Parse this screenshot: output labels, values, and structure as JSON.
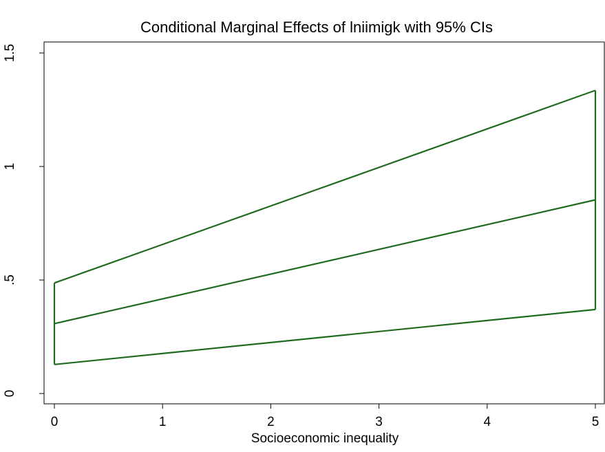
{
  "chart_data": {
    "type": "line",
    "title": "Conditional Marginal Effects of lniimigk with 95% CIs",
    "xlabel": "Socioeconomic inequality",
    "ylabel": "",
    "xlim": [
      0,
      5
    ],
    "ylim": [
      0,
      1.5
    ],
    "x_ticks": [
      {
        "value": 0,
        "label": "0"
      },
      {
        "value": 1,
        "label": "1"
      },
      {
        "value": 2,
        "label": "2"
      },
      {
        "value": 3,
        "label": "3"
      },
      {
        "value": 4,
        "label": "4"
      },
      {
        "value": 5,
        "label": "5"
      }
    ],
    "y_ticks": [
      {
        "value": 0,
        "label": "0"
      },
      {
        "value": 0.5,
        "label": ".5"
      },
      {
        "value": 1,
        "label": "1"
      },
      {
        "value": 1.5,
        "label": "1.5"
      }
    ],
    "grid": false,
    "legend": "none",
    "color": "#1f6a1f",
    "series": [
      {
        "role": "upper_ci",
        "x": [
          0,
          5
        ],
        "values": [
          0.487,
          1.335
        ]
      },
      {
        "role": "estimate",
        "x": [
          0,
          5
        ],
        "values": [
          0.308,
          0.853
        ]
      },
      {
        "role": "lower_ci",
        "x": [
          0,
          5
        ],
        "values": [
          0.128,
          0.37
        ]
      }
    ]
  }
}
